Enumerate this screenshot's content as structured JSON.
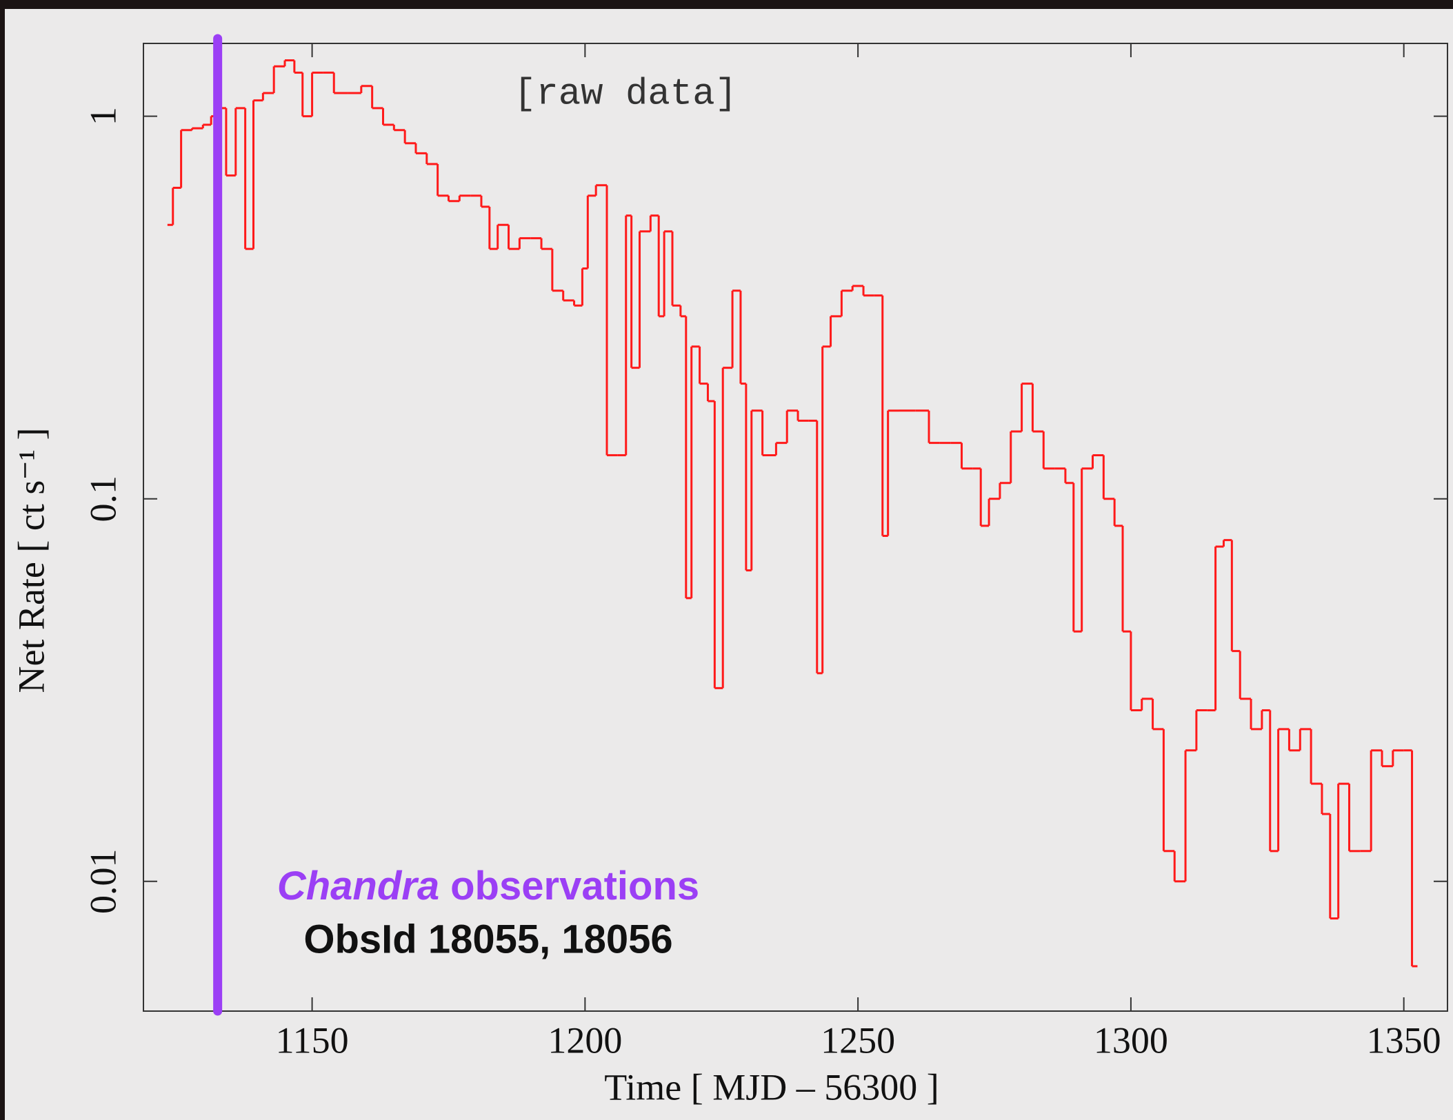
{
  "chart_data": {
    "type": "step",
    "x_label": "Time [ MJD – 56300 ]",
    "y_label": "Net Rate [ ct s⁻¹ ]",
    "annotations": [
      "[raw data]",
      "Chandra",
      "observations",
      "ObsId 18055, 18056"
    ],
    "annotation_color": "#9b3ff5",
    "log_y": true,
    "xlim": [
      1119.1,
      1358
    ],
    "ylim": [
      0.00458,
      1.55
    ],
    "xticks": [
      1150,
      1200,
      1250,
      1300,
      1350
    ],
    "yticks": [
      0.01,
      0.1,
      1
    ],
    "vline": {
      "x": 1132.7,
      "color": "#9b3ff5"
    },
    "series": [
      {
        "name": "Net Rate",
        "color": "#ff1a1a",
        "x": [
          1124,
          1125,
          1127,
          1129,
          1131,
          1132,
          1133.5,
          1135,
          1137,
          1138.5,
          1140,
          1142,
          1144,
          1146,
          1147.5,
          1149,
          1151,
          1153,
          1155,
          1158,
          1160,
          1162,
          1164,
          1166,
          1168,
          1170,
          1172,
          1174,
          1176,
          1178,
          1180,
          1182,
          1183,
          1185,
          1187,
          1189,
          1191,
          1193,
          1195,
          1197,
          1199,
          1200,
          1201,
          1203,
          1205,
          1207,
          1208,
          1209,
          1211,
          1213,
          1214,
          1215,
          1217,
          1218,
          1219,
          1220,
          1222,
          1223,
          1224.5,
          1226,
          1228,
          1229,
          1230,
          1231,
          1234,
          1236,
          1238,
          1240,
          1242,
          1243,
          1244,
          1246,
          1248,
          1250,
          1252,
          1254,
          1255,
          1256,
          1259,
          1262,
          1264,
          1266,
          1268,
          1270,
          1272,
          1273,
          1275,
          1277,
          1279,
          1281,
          1283,
          1285,
          1287,
          1289,
          1290,
          1292,
          1294,
          1296,
          1298,
          1299,
          1301,
          1303,
          1305,
          1307,
          1309,
          1311,
          1313,
          1315,
          1316,
          1318,
          1319,
          1321,
          1323,
          1325,
          1326,
          1328,
          1330,
          1332,
          1334,
          1336,
          1337,
          1339,
          1341,
          1343,
          1345,
          1347,
          1349,
          1351,
          1352
        ],
        "values": [
          0.52,
          0.65,
          0.92,
          0.93,
          0.95,
          1.0,
          1.05,
          0.7,
          1.05,
          0.45,
          1.1,
          1.15,
          1.35,
          1.4,
          1.3,
          1.0,
          1.3,
          1.3,
          1.15,
          1.15,
          1.2,
          1.05,
          0.95,
          0.92,
          0.85,
          0.8,
          0.75,
          0.62,
          0.6,
          0.62,
          0.62,
          0.58,
          0.45,
          0.52,
          0.45,
          0.48,
          0.48,
          0.45,
          0.35,
          0.33,
          0.32,
          0.4,
          0.62,
          0.66,
          0.13,
          0.13,
          0.55,
          0.22,
          0.5,
          0.55,
          0.3,
          0.5,
          0.32,
          0.3,
          0.055,
          0.25,
          0.2,
          0.18,
          0.032,
          0.22,
          0.35,
          0.2,
          0.065,
          0.17,
          0.13,
          0.14,
          0.17,
          0.16,
          0.16,
          0.035,
          0.25,
          0.3,
          0.35,
          0.36,
          0.34,
          0.34,
          0.08,
          0.17,
          0.17,
          0.17,
          0.14,
          0.14,
          0.14,
          0.12,
          0.12,
          0.085,
          0.1,
          0.11,
          0.15,
          0.2,
          0.15,
          0.12,
          0.12,
          0.11,
          0.045,
          0.12,
          0.13,
          0.1,
          0.085,
          0.045,
          0.028,
          0.03,
          0.025,
          0.012,
          0.01,
          0.022,
          0.028,
          0.028,
          0.075,
          0.078,
          0.04,
          0.03,
          0.025,
          0.028,
          0.012,
          0.025,
          0.022,
          0.025,
          0.018,
          0.015,
          0.008,
          0.018,
          0.012,
          0.012,
          0.022,
          0.02,
          0.022,
          0.022,
          0.006
        ]
      }
    ]
  }
}
